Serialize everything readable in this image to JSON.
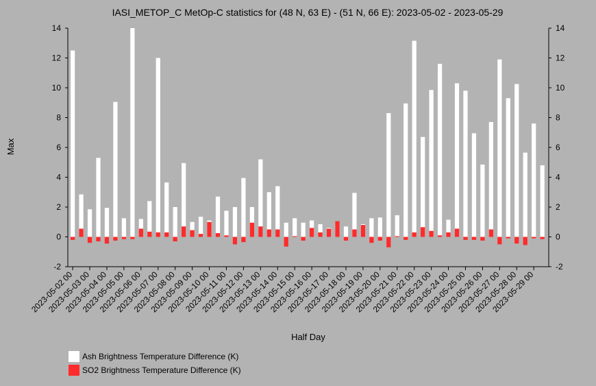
{
  "chart_data": {
    "type": "bar",
    "title": "IASI_METOP_C MetOp-C statistics for (48 N, 63 E) - (51 N, 66 E): 2023-05-02 - 2023-05-29",
    "xlabel": "Half Day",
    "ylabel": "Max",
    "ylim": [
      -2,
      14
    ],
    "yticks": [
      -2,
      0,
      2,
      4,
      6,
      8,
      10,
      12,
      14
    ],
    "grid": false,
    "legend_position": "bottom-left",
    "tick_labels": [
      "2023-05-02 00",
      "2023-05-03 00",
      "2023-05-04 00",
      "2023-05-05 00",
      "2023-05-06 00",
      "2023-05-07 00",
      "2023-05-08 00",
      "2023-05-09 00",
      "2023-05-10 00",
      "2023-05-11 00",
      "2023-05-12 00",
      "2023-05-13 00",
      "2023-05-14 00",
      "2023-05-15 00",
      "2023-05-16 00",
      "2023-05-17 00",
      "2023-05-18 00",
      "2023-05-19 00",
      "2023-05-20 00",
      "2023-05-21 00",
      "2023-05-22 00",
      "2023-05-23 00",
      "2023-05-24 00",
      "2023-05-25 00",
      "2023-05-26 00",
      "2023-05-27 00",
      "2023-05-28 00",
      "2023-05-29 00"
    ],
    "series": [
      {
        "name": "Ash Brightness Temperature Difference (K)",
        "color": "#ffffff",
        "values": [
          12.5,
          2.85,
          1.85,
          5.3,
          1.95,
          9.05,
          1.25,
          14.0,
          1.2,
          2.4,
          12.0,
          3.65,
          2.0,
          4.95,
          1.0,
          1.35,
          1.1,
          2.7,
          1.75,
          2.0,
          3.95,
          2.0,
          5.2,
          3.0,
          3.4,
          0.95,
          1.25,
          0.95,
          1.1,
          0.85,
          0.6,
          0.9,
          0.7,
          2.95,
          0.85,
          1.25,
          1.3,
          8.3,
          1.45,
          8.95,
          13.15,
          6.7,
          9.85,
          11.6,
          1.15,
          10.3,
          9.8,
          6.95,
          4.85,
          7.7,
          11.9,
          9.3,
          10.25,
          5.65,
          7.6,
          4.8
        ]
      },
      {
        "name": "SO2 Brightness Temperature Difference (K)",
        "color": "#ff2a2a",
        "values": [
          -0.2,
          0.55,
          -0.4,
          -0.3,
          -0.45,
          -0.25,
          -0.15,
          -0.15,
          0.55,
          0.35,
          0.3,
          0.3,
          -0.3,
          0.7,
          0.45,
          0.2,
          1.0,
          0.25,
          0.1,
          -0.5,
          -0.35,
          0.95,
          0.7,
          0.5,
          0.5,
          -0.65,
          0.05,
          -0.25,
          0.6,
          0.3,
          0.55,
          1.05,
          -0.25,
          0.5,
          0.8,
          -0.4,
          -0.25,
          -0.7,
          0.05,
          -0.2,
          0.3,
          0.65,
          0.4,
          0.1,
          0.3,
          0.55,
          -0.2,
          -0.2,
          -0.25,
          0.5,
          -0.5,
          -0.1,
          -0.45,
          -0.55,
          -0.1,
          -0.15
        ]
      }
    ]
  }
}
